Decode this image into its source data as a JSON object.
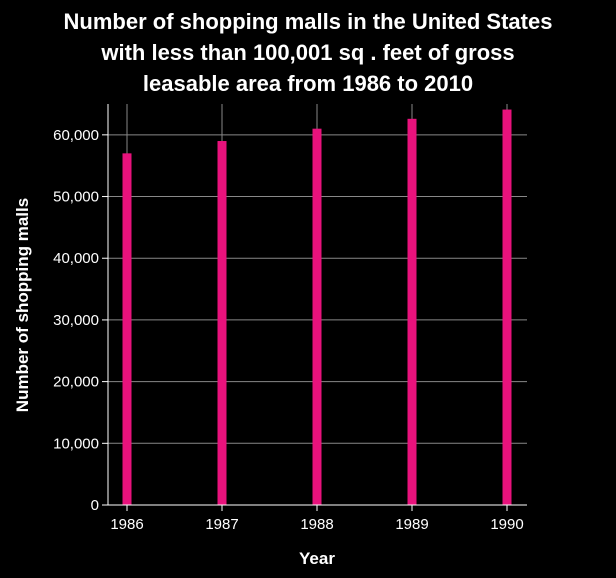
{
  "chart_data": {
    "type": "bar",
    "title_lines": [
      "Number of shopping malls in the United States",
      "with less than 100,001 sq . feet of gross",
      "leasable area from 1986 to 2010"
    ],
    "xlabel": "Year",
    "ylabel": "Number of shopping malls",
    "x": [
      1986,
      1987,
      1988,
      1989,
      1990
    ],
    "values": [
      57000,
      59000,
      61000,
      62600,
      64100
    ],
    "xlim": [
      1986,
      1990
    ],
    "ylim": [
      0,
      65000
    ],
    "y_ticks": [
      0,
      10000,
      20000,
      30000,
      40000,
      50000,
      60000
    ],
    "y_tick_labels": [
      "0",
      "10,000",
      "20,000",
      "30,000",
      "40,000",
      "50,000",
      "60,000"
    ],
    "x_tick_labels": [
      "1986",
      "1987",
      "1988",
      "1989",
      "1990"
    ],
    "grid": true,
    "bar_color": "#e8127c",
    "background_color": "#000000",
    "grid_color": "#888888",
    "text_color": "#ffffff"
  }
}
